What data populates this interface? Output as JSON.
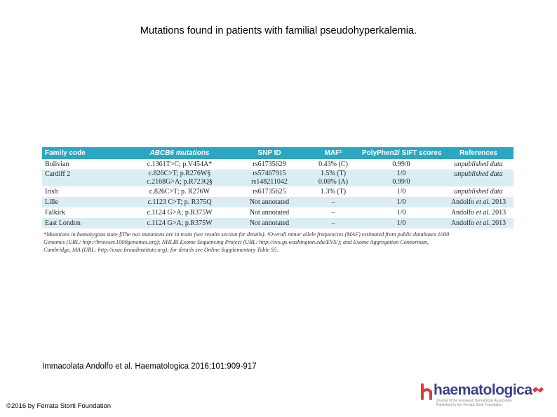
{
  "title": "Mutations found in patients with familial pseudohyperkalemia.",
  "table": {
    "headers": [
      "Family code",
      "ABCB6 mutations",
      "SNP ID",
      "MAF¹",
      "PolyPhen2/ SIFT scores",
      "References"
    ],
    "rows": [
      {
        "family": "Bolivian",
        "mutation": "c.1361T>C; p.V454A*",
        "snp": "rs61735629",
        "maf": "0.43% (C)",
        "score": "0.99/0",
        "ref": "unpublished data"
      },
      {
        "family": "Cardiff 2",
        "mutation": "c.826C>T; p.R276W§",
        "snp": "rs57467915",
        "maf": "1.5% (T)",
        "score": "1/0",
        "ref": "unpublished data"
      },
      {
        "family": "",
        "mutation": "c.2168G>A; p.R723Q§",
        "snp": "rs148211042",
        "maf": "0.08% (A)",
        "score": "0.99/0",
        "ref": ""
      },
      {
        "family": "Irish",
        "mutation": "c.826C>T; p. R276W",
        "snp": "rs61735625",
        "maf": "1.3% (T)",
        "score": "1/0",
        "ref": "unpublished data"
      },
      {
        "family": "Lille",
        "mutation": "c.1123 C>T; p. R375Q",
        "snp": "Not annotated",
        "maf": "–",
        "score": "1/0",
        "ref_main": "Andolfo ",
        "ref_em": "et al.",
        "ref_year": " 2013"
      },
      {
        "family": "Falkirk",
        "mutation": "c.1124 G>A; p.R375W",
        "snp": "Not annotated",
        "maf": "–",
        "score": "1/0",
        "ref_main": "Andolfo ",
        "ref_em": "et al.",
        "ref_year": " 2013"
      },
      {
        "family": "East London",
        "mutation": "c.1124 G>A; p.R375W",
        "snp": "Not annotated",
        "maf": "–",
        "score": "1/0",
        "ref_main": "Andolfo ",
        "ref_em": "et al.",
        "ref_year": " 2013"
      }
    ],
    "footnote": {
      "line1": "*Mutations in homozygous state.§The two mutations are in trans (see results section for details). ¹Overall minor allele frequencies (MAF) estimated from public databases 1000",
      "line2": "Genomes (URL: http://browser.1000genomes.org); NHLBI Exome Sequencing Project (URL: http://evs.gs.washington.edu/EVS/); and Exome Aggregation Consortium,",
      "line3": "Cambridge, MA (URL: http://exac.broadinstitute.org); for details see Online Supplementary Table S5."
    }
  },
  "citation": "Immacolata Andolfo et al. Haematologica 2016;101:909-917",
  "copyright": "©2016 by Ferrata Storti Foundation",
  "logo": {
    "word": "haematologica",
    "sub1": "Journal of the European Hematology Association",
    "sub2": "Published by the Ferrata Storti Foundation"
  },
  "colors": {
    "header": "#2ba7c2",
    "row_alt": "#d9edf3",
    "logo": "#3b3f8f"
  }
}
